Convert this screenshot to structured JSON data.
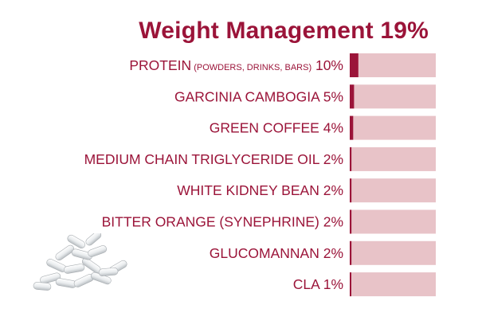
{
  "title": "Weight Management 19%",
  "chart_data": {
    "type": "bar",
    "orientation": "horizontal",
    "title": "Weight Management 19%",
    "xlim": [
      0,
      100
    ],
    "colors": {
      "track": "#e8c3c8",
      "fill": "#9b1439",
      "text": "#9b1439"
    },
    "rows": [
      {
        "label": "PROTEIN",
        "sub": "(POWDERS, DRINKS, BARS)",
        "pct_label": "10%",
        "value": 10
      },
      {
        "label": "GARCINIA CAMBOGIA",
        "sub": "",
        "pct_label": "5%",
        "value": 5
      },
      {
        "label": "GREEN COFFEE",
        "sub": "",
        "pct_label": "4%",
        "value": 4
      },
      {
        "label": "MEDIUM CHAIN TRIGLYCERIDE OIL",
        "sub": "",
        "pct_label": "2%",
        "value": 2
      },
      {
        "label": "WHITE KIDNEY BEAN",
        "sub": "",
        "pct_label": "2%",
        "value": 2
      },
      {
        "label": "BITTER ORANGE (SYNEPHRINE)",
        "sub": "",
        "pct_label": "2%",
        "value": 2
      },
      {
        "label": "GLUCOMANNAN",
        "sub": "",
        "pct_label": "2%",
        "value": 2
      },
      {
        "label": "CLA",
        "sub": "",
        "pct_label": "1%",
        "value": 1
      }
    ]
  }
}
